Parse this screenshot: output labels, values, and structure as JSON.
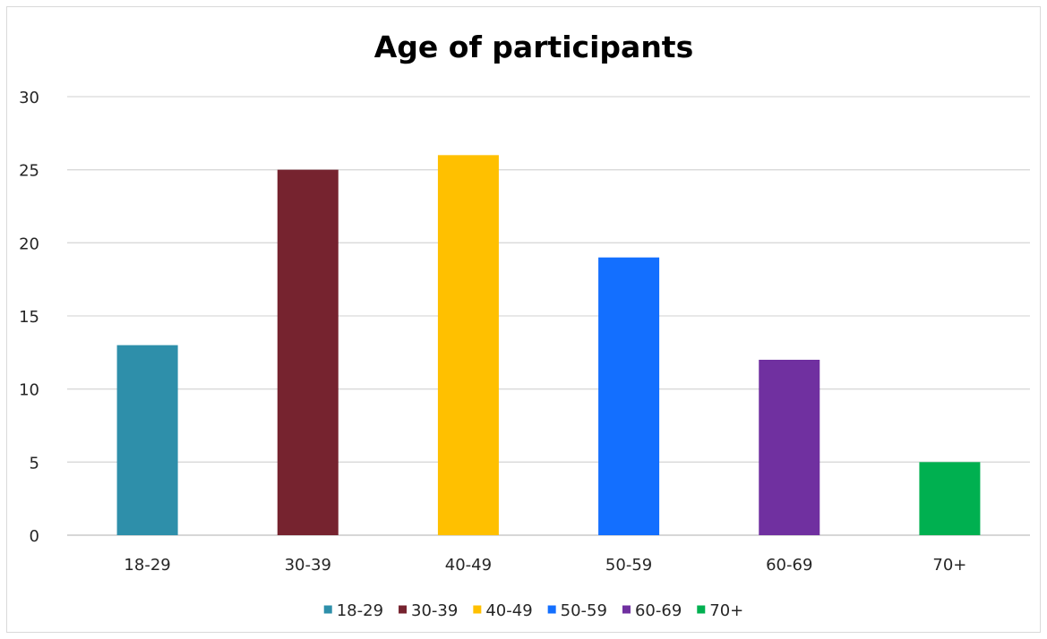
{
  "chart_data": {
    "type": "bar",
    "title": "Age of participants",
    "xlabel": "",
    "ylabel": "",
    "categories": [
      "18-29",
      "30-39",
      "40-49",
      "50-59",
      "60-69",
      "70+"
    ],
    "values": [
      13,
      25,
      26,
      19,
      12,
      5
    ],
    "colors": [
      "#2E8FAA",
      "#76232F",
      "#FFC000",
      "#136FFF",
      "#7030A0",
      "#00B050"
    ],
    "ylim": [
      0,
      30
    ],
    "yticks": [
      "0",
      "5",
      "10",
      "15",
      "20",
      "25",
      "30"
    ],
    "grid": true,
    "legend": {
      "position": "bottom",
      "entries": [
        "18-29",
        "30-39",
        "40-49",
        "50-59",
        "60-69",
        "70+"
      ]
    }
  }
}
